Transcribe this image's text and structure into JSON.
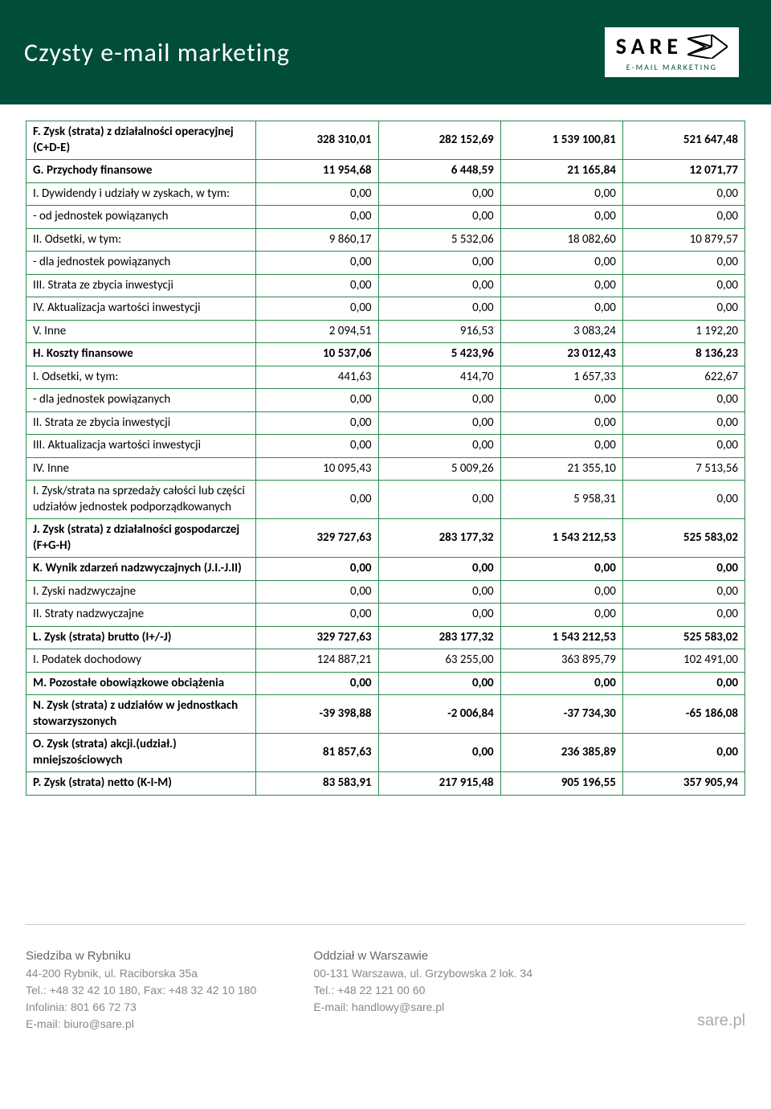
{
  "header": {
    "title": "Czysty e-mail marketing",
    "logo_text": "SARE",
    "logo_sub": "E-MAIL MARKETING"
  },
  "table": {
    "border_color": "#2a8a4d",
    "col_count": 5,
    "rows": [
      {
        "bold": true,
        "label": "F. Zysk (strata) z działalności operacyjnej (C+D-E)",
        "c": [
          "328 310,01",
          "282 152,69",
          "1 539 100,81",
          "521 647,48"
        ]
      },
      {
        "bold": true,
        "label": "G. Przychody finansowe",
        "c": [
          "11 954,68",
          "6 448,59",
          "21 165,84",
          "12 071,77"
        ]
      },
      {
        "bold": false,
        "label": "I. Dywidendy i udziały w zyskach, w tym:",
        "c": [
          "0,00",
          "0,00",
          "0,00",
          "0,00"
        ]
      },
      {
        "bold": false,
        "label": "- od jednostek powiązanych",
        "c": [
          "0,00",
          "0,00",
          "0,00",
          "0,00"
        ]
      },
      {
        "bold": false,
        "label": "II. Odsetki, w tym:",
        "c": [
          "9 860,17",
          "5 532,06",
          "18 082,60",
          "10 879,57"
        ]
      },
      {
        "bold": false,
        "label": "- dla jednostek powiązanych",
        "c": [
          "0,00",
          "0,00",
          "0,00",
          "0,00"
        ]
      },
      {
        "bold": false,
        "label": "III. Strata ze zbycia inwestycji",
        "c": [
          "0,00",
          "0,00",
          "0,00",
          "0,00"
        ]
      },
      {
        "bold": false,
        "label": "IV. Aktualizacja wartości inwestycji",
        "c": [
          "0,00",
          "0,00",
          "0,00",
          "0,00"
        ]
      },
      {
        "bold": false,
        "label": "V. Inne",
        "c": [
          "2 094,51",
          "916,53",
          "3 083,24",
          "1 192,20"
        ]
      },
      {
        "bold": true,
        "label": "H. Koszty finansowe",
        "c": [
          "10 537,06",
          "5 423,96",
          "23 012,43",
          "8 136,23"
        ]
      },
      {
        "bold": false,
        "label": "I. Odsetki, w tym:",
        "c": [
          "441,63",
          "414,70",
          "1 657,33",
          "622,67"
        ]
      },
      {
        "bold": false,
        "label": "- dla jednostek powiązanych",
        "c": [
          "0,00",
          "0,00",
          "0,00",
          "0,00"
        ]
      },
      {
        "bold": false,
        "label": "II. Strata ze zbycia inwestycji",
        "c": [
          "0,00",
          "0,00",
          "0,00",
          "0,00"
        ]
      },
      {
        "bold": false,
        "label": "III. Aktualizacja wartości inwestycji",
        "c": [
          "0,00",
          "0,00",
          "0,00",
          "0,00"
        ]
      },
      {
        "bold": false,
        "label": "IV. Inne",
        "c": [
          "10 095,43",
          "5 009,26",
          "21 355,10",
          "7 513,56"
        ]
      },
      {
        "bold": false,
        "label": "I. Zysk/strata na sprzedaży całości lub części udziałów jednostek podporządkowanych",
        "c": [
          "0,00",
          "0,00",
          "5 958,31",
          "0,00"
        ]
      },
      {
        "bold": true,
        "label": "J. Zysk (strata) z działalności gospodarczej (F+G-H)",
        "c": [
          "329 727,63",
          "283 177,32",
          "1 543 212,53",
          "525 583,02"
        ]
      },
      {
        "bold": true,
        "label": "K. Wynik zdarzeń nadzwyczajnych (J.I.-J.II)",
        "c": [
          "0,00",
          "0,00",
          "0,00",
          "0,00"
        ]
      },
      {
        "bold": false,
        "label": "I. Zyski nadzwyczajne",
        "c": [
          "0,00",
          "0,00",
          "0,00",
          "0,00"
        ]
      },
      {
        "bold": false,
        "label": "II. Straty nadzwyczajne",
        "c": [
          "0,00",
          "0,00",
          "0,00",
          "0,00"
        ]
      },
      {
        "bold": true,
        "label": "L. Zysk (strata) brutto (I+/-J)",
        "c": [
          "329 727,63",
          "283 177,32",
          "1 543 212,53",
          "525 583,02"
        ]
      },
      {
        "bold": false,
        "label": "I. Podatek dochodowy",
        "c": [
          "124 887,21",
          "63 255,00",
          "363 895,79",
          "102 491,00"
        ]
      },
      {
        "bold": true,
        "label": "M. Pozostałe obowiązkowe obciążenia",
        "c": [
          "0,00",
          "0,00",
          "0,00",
          "0,00"
        ]
      },
      {
        "bold": true,
        "label": "N. Zysk (strata) z udziałów w jednostkach stowarzyszonych",
        "c": [
          "-39 398,88",
          "-2 006,84",
          "-37 734,30",
          "-65 186,08"
        ]
      },
      {
        "bold": true,
        "label": "O. Zysk (strata) akcji.(udział.) mniejszościowych",
        "c": [
          "81 857,63",
          "0,00",
          "236 385,89",
          "0,00"
        ]
      },
      {
        "bold": true,
        "label": "P. Zysk (strata) netto (K-I-M)",
        "c": [
          "83 583,91",
          "217 915,48",
          "905 196,55",
          "357 905,94"
        ]
      }
    ]
  },
  "footer": {
    "left": {
      "heading": "Siedziba w Rybniku",
      "lines": [
        "44-200 Rybnik, ul. Raciborska 35a",
        "Tel.: +48 32 42 10 180, Fax: +48 32 42 10 180",
        "Infolinia: 801 66 72 73",
        "E-mail: biuro@sare.pl"
      ]
    },
    "mid": {
      "heading": "Oddział w Warszawie",
      "lines": [
        "00-131 Warszawa, ul. Grzybowska 2 lok. 34",
        "Tel.: +48 22 121 00 60",
        "E-mail: handlowy@sare.pl"
      ]
    },
    "right": "sare.pl"
  }
}
